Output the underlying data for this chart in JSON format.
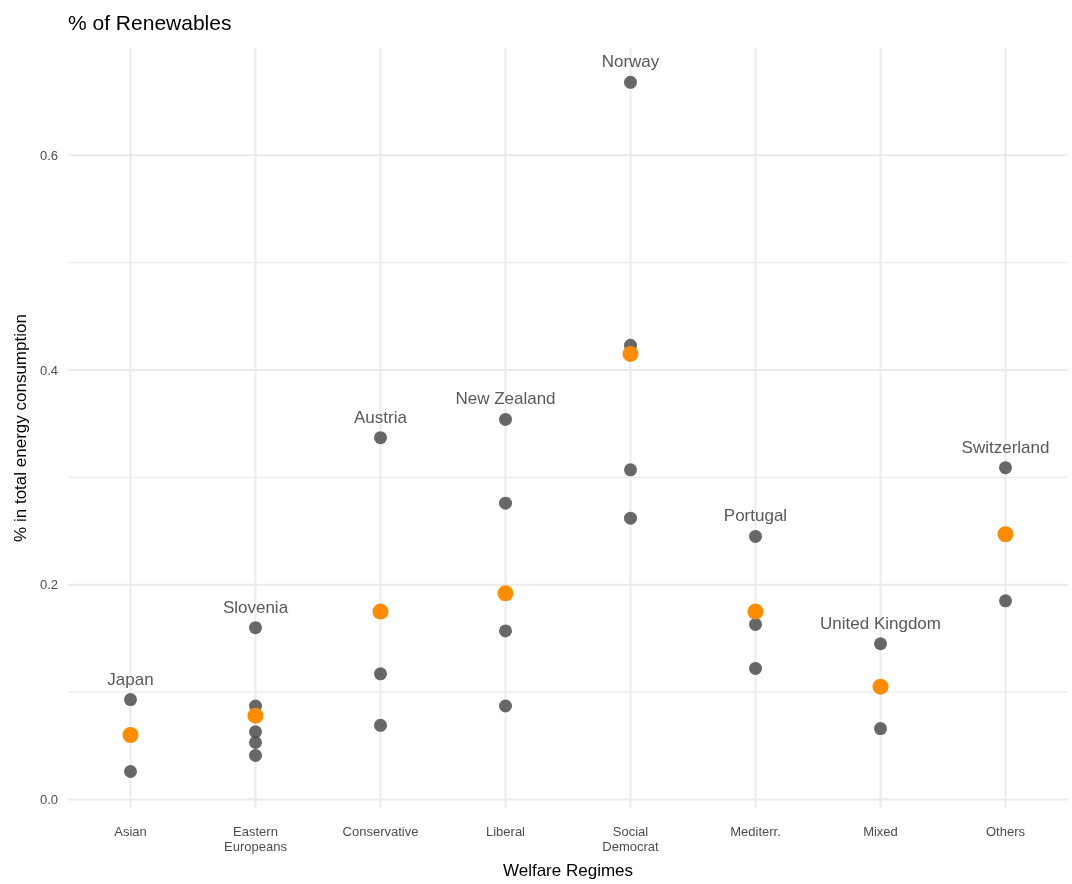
{
  "chart_data": {
    "type": "scatter",
    "title": "% of Renewables",
    "xlabel": "Welfare Regimes",
    "ylabel": "% in total energy consumption",
    "categories": [
      "Asian",
      "Eastern Europeans",
      "Conservative",
      "Liberal",
      "Social Democrat",
      "Mediterr.",
      "Mixed",
      "Others"
    ],
    "series": [
      {
        "color": "#4d4d4d",
        "x": [
          "Asian",
          "Asian",
          "Eastern Europeans",
          "Eastern Europeans",
          "Eastern Europeans",
          "Eastern Europeans",
          "Eastern Europeans",
          "Conservative",
          "Conservative",
          "Conservative",
          "Liberal",
          "Liberal",
          "Liberal",
          "Liberal",
          "Social Democrat",
          "Social Democrat",
          "Social Democrat",
          "Social Democrat",
          "Mediterr.",
          "Mediterr.",
          "Mediterr.",
          "Mixed",
          "Mixed",
          "Others",
          "Others"
        ],
        "values": [
          0.093,
          0.026,
          0.16,
          0.087,
          0.063,
          0.053,
          0.041,
          0.337,
          0.117,
          0.069,
          0.354,
          0.276,
          0.157,
          0.087,
          0.668,
          0.423,
          0.307,
          0.262,
          0.245,
          0.163,
          0.122,
          0.145,
          0.066,
          0.309,
          0.185
        ]
      },
      {
        "color": "#ff8c00",
        "x": [
          "Asian",
          "Eastern Europeans",
          "Conservative",
          "Liberal",
          "Social Democrat",
          "Mediterr.",
          "Mixed",
          "Others"
        ],
        "values": [
          0.06,
          0.078,
          0.175,
          0.192,
          0.415,
          0.175,
          0.105,
          0.247
        ]
      }
    ],
    "annotations": [
      {
        "text": "Japan",
        "x": "Asian",
        "y": 0.093
      },
      {
        "text": "Slovenia",
        "x": "Eastern Europeans",
        "y": 0.16
      },
      {
        "text": "Austria",
        "x": "Conservative",
        "y": 0.337
      },
      {
        "text": "New Zealand",
        "x": "Liberal",
        "y": 0.354
      },
      {
        "text": "Norway",
        "x": "Social Democrat",
        "y": 0.668
      },
      {
        "text": "Portugal",
        "x": "Mediterr.",
        "y": 0.245
      },
      {
        "text": "United Kingdom",
        "x": "Mixed",
        "y": 0.145
      },
      {
        "text": "Switzerland",
        "x": "Others",
        "y": 0.309
      }
    ],
    "ylim": [
      -0.008,
      0.7
    ],
    "yticks": [
      {
        "value": 0,
        "label": "0.0"
      },
      {
        "value": 0.1,
        "label": null
      },
      {
        "value": 0.2,
        "label": "0.2"
      },
      {
        "value": 0.3,
        "label": null
      },
      {
        "value": 0.4,
        "label": "0.4"
      },
      {
        "value": 0.5,
        "label": null
      },
      {
        "value": 0.6,
        "label": "0.6"
      }
    ],
    "grid": true,
    "marker": "circle"
  }
}
